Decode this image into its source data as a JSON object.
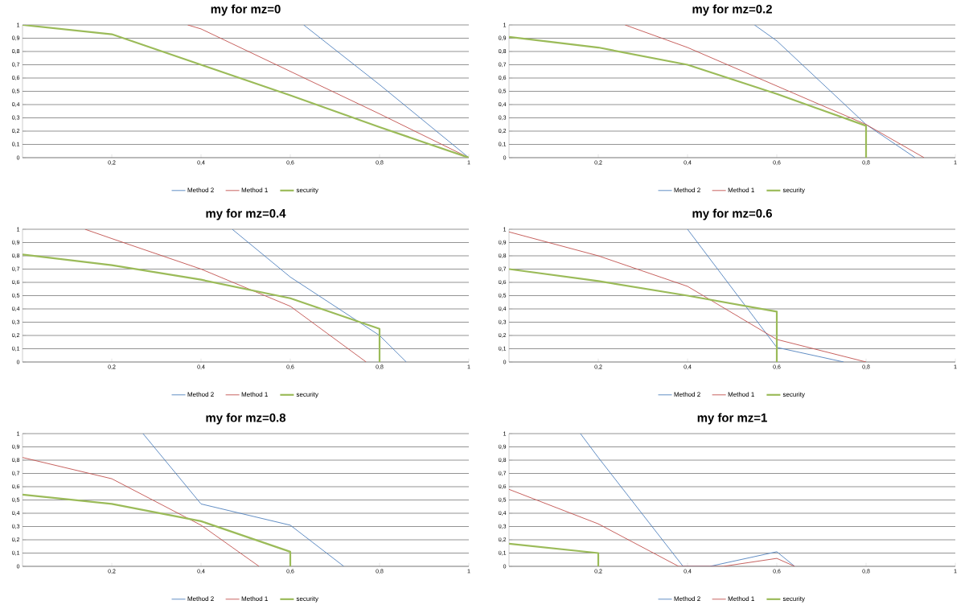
{
  "chart_data": [
    {
      "type": "line",
      "title": "my for mz=0",
      "xlim": [
        0,
        1
      ],
      "ylim": [
        0,
        1
      ],
      "xticks": [
        {
          "value": 0.2,
          "label": "0,2"
        },
        {
          "value": 0.4,
          "label": "0,4"
        },
        {
          "value": 0.6,
          "label": "0,6"
        },
        {
          "value": 0.8,
          "label": "0,8"
        },
        1
      ],
      "yticks": [
        0,
        {
          "value": 0.1,
          "label": "0,1"
        },
        {
          "value": 0.2,
          "label": "0,2"
        },
        {
          "value": 0.3,
          "label": "0,3"
        },
        {
          "value": 0.4,
          "label": "0,4"
        },
        {
          "value": 0.5,
          "label": "0,5"
        },
        {
          "value": 0.6,
          "label": "0,6"
        },
        {
          "value": 0.7,
          "label": "0,7"
        },
        {
          "value": 0.8,
          "label": "0,8"
        },
        {
          "value": 0.9,
          "label": "0,9"
        },
        1
      ],
      "grid": "y",
      "legend": "bottom",
      "marker": "none",
      "series": [
        {
          "name": "Method 2",
          "color": "#4f81bd",
          "x": [
            0.63,
            0.8,
            1
          ],
          "values": [
            1,
            0.55,
            0
          ]
        },
        {
          "name": "Method 1",
          "color": "#c0504d",
          "x": [
            0.37,
            0.4,
            0.6,
            0.8,
            1
          ],
          "values": [
            1,
            0.97,
            0.65,
            0.33,
            0
          ]
        },
        {
          "name": "security",
          "color": "#9bbb59",
          "x": [
            0,
            0.2,
            0.4,
            0.6,
            0.8,
            1
          ],
          "values": [
            1,
            0.93,
            0.7,
            0.47,
            0.23,
            0
          ]
        }
      ]
    },
    {
      "type": "line",
      "title": "my for mz=0.2",
      "xlim": [
        0,
        1
      ],
      "ylim": [
        0,
        1
      ],
      "xticks": [
        {
          "value": 0.2,
          "label": "0,2"
        },
        {
          "value": 0.4,
          "label": "0,4"
        },
        {
          "value": 0.6,
          "label": "0,6"
        },
        {
          "value": 0.8,
          "label": "0,8"
        },
        1
      ],
      "yticks": [
        0,
        {
          "value": 0.1,
          "label": "0,1"
        },
        {
          "value": 0.2,
          "label": "0,2"
        },
        {
          "value": 0.3,
          "label": "0,3"
        },
        {
          "value": 0.4,
          "label": "0,4"
        },
        {
          "value": 0.5,
          "label": "0,5"
        },
        {
          "value": 0.6,
          "label": "0,6"
        },
        {
          "value": 0.7,
          "label": "0,7"
        },
        {
          "value": 0.8,
          "label": "0,8"
        },
        {
          "value": 0.9,
          "label": "0,9"
        },
        1
      ],
      "grid": "y",
      "legend": "bottom",
      "marker": "none",
      "series": [
        {
          "name": "Method 2",
          "color": "#4f81bd",
          "x": [
            0.55,
            0.6,
            0.8,
            0.91
          ],
          "values": [
            1,
            0.88,
            0.25,
            0
          ]
        },
        {
          "name": "Method 1",
          "color": "#c0504d",
          "x": [
            0.26,
            0.4,
            0.6,
            0.8,
            0.93
          ],
          "values": [
            1,
            0.83,
            0.54,
            0.25,
            0
          ]
        },
        {
          "name": "security",
          "color": "#9bbb59",
          "x": [
            0,
            0.2,
            0.4,
            0.6,
            0.8,
            0.8
          ],
          "values": [
            0.91,
            0.83,
            0.7,
            0.48,
            0.24,
            0
          ]
        }
      ]
    },
    {
      "type": "line",
      "title": "my for mz=0.4",
      "xlim": [
        0,
        1
      ],
      "ylim": [
        0,
        1
      ],
      "xticks": [
        {
          "value": 0.2,
          "label": "0,2"
        },
        {
          "value": 0.4,
          "label": "0,4"
        },
        {
          "value": 0.6,
          "label": "0,6"
        },
        {
          "value": 0.8,
          "label": "0,8"
        },
        1
      ],
      "yticks": [
        0,
        {
          "value": 0.1,
          "label": "0,1"
        },
        {
          "value": 0.2,
          "label": "0,2"
        },
        {
          "value": 0.3,
          "label": "0,3"
        },
        {
          "value": 0.4,
          "label": "0,4"
        },
        {
          "value": 0.5,
          "label": "0,5"
        },
        {
          "value": 0.6,
          "label": "0,6"
        },
        {
          "value": 0.7,
          "label": "0,7"
        },
        {
          "value": 0.8,
          "label": "0,8"
        },
        {
          "value": 0.9,
          "label": "0,9"
        },
        1
      ],
      "grid": "y",
      "legend": "bottom",
      "marker": "none",
      "series": [
        {
          "name": "Method 2",
          "color": "#4f81bd",
          "x": [
            0.47,
            0.6,
            0.8,
            0.86
          ],
          "values": [
            1,
            0.64,
            0.2,
            0
          ]
        },
        {
          "name": "Method 1",
          "color": "#c0504d",
          "x": [
            0.14,
            0.2,
            0.4,
            0.6,
            0.77
          ],
          "values": [
            1,
            0.93,
            0.7,
            0.42,
            0
          ]
        },
        {
          "name": "security",
          "color": "#9bbb59",
          "x": [
            0,
            0.2,
            0.4,
            0.6,
            0.8,
            0.8
          ],
          "values": [
            0.81,
            0.73,
            0.62,
            0.48,
            0.25,
            0
          ]
        }
      ]
    },
    {
      "type": "line",
      "title": "my for mz=0.6",
      "xlim": [
        0,
        1
      ],
      "ylim": [
        0,
        1
      ],
      "xticks": [
        {
          "value": 0.2,
          "label": "0,2"
        },
        {
          "value": 0.4,
          "label": "0,4"
        },
        {
          "value": 0.6,
          "label": "0,6"
        },
        {
          "value": 0.8,
          "label": "0,8"
        },
        1
      ],
      "yticks": [
        0,
        {
          "value": 0.1,
          "label": "0,1"
        },
        {
          "value": 0.2,
          "label": "0,2"
        },
        {
          "value": 0.3,
          "label": "0,3"
        },
        {
          "value": 0.4,
          "label": "0,4"
        },
        {
          "value": 0.5,
          "label": "0,5"
        },
        {
          "value": 0.6,
          "label": "0,6"
        },
        {
          "value": 0.7,
          "label": "0,7"
        },
        {
          "value": 0.8,
          "label": "0,8"
        },
        {
          "value": 0.9,
          "label": "0,9"
        },
        1
      ],
      "grid": "y",
      "legend": "bottom",
      "marker": "none",
      "series": [
        {
          "name": "Method 2",
          "color": "#4f81bd",
          "x": [
            0.4,
            0.6,
            0.75
          ],
          "values": [
            1,
            0.11,
            0
          ]
        },
        {
          "name": "Method 1",
          "color": "#c0504d",
          "x": [
            0,
            0.2,
            0.4,
            0.6,
            0.8
          ],
          "values": [
            0.98,
            0.8,
            0.57,
            0.17,
            0
          ]
        },
        {
          "name": "security",
          "color": "#9bbb59",
          "x": [
            0,
            0.2,
            0.4,
            0.6,
            0.6
          ],
          "values": [
            0.7,
            0.61,
            0.5,
            0.38,
            0
          ]
        }
      ]
    },
    {
      "type": "line",
      "title": "my for mz=0.8",
      "xlim": [
        0,
        1
      ],
      "ylim": [
        0,
        1
      ],
      "xticks": [
        {
          "value": 0.2,
          "label": "0,2"
        },
        {
          "value": 0.4,
          "label": "0,4"
        },
        {
          "value": 0.6,
          "label": "0,6"
        },
        {
          "value": 0.8,
          "label": "0,8"
        },
        1
      ],
      "yticks": [
        0,
        {
          "value": 0.1,
          "label": "0,1"
        },
        {
          "value": 0.2,
          "label": "0,2"
        },
        {
          "value": 0.3,
          "label": "0,3"
        },
        {
          "value": 0.4,
          "label": "0,4"
        },
        {
          "value": 0.5,
          "label": "0,5"
        },
        {
          "value": 0.6,
          "label": "0,6"
        },
        {
          "value": 0.7,
          "label": "0,7"
        },
        {
          "value": 0.8,
          "label": "0,8"
        },
        {
          "value": 0.9,
          "label": "0,9"
        },
        1
      ],
      "grid": "y",
      "legend": "bottom",
      "marker": "none",
      "series": [
        {
          "name": "Method 2",
          "color": "#4f81bd",
          "x": [
            0.27,
            0.4,
            0.6,
            0.72
          ],
          "values": [
            1,
            0.47,
            0.31,
            0
          ]
        },
        {
          "name": "Method 1",
          "color": "#c0504d",
          "x": [
            0,
            0.2,
            0.4,
            0.53
          ],
          "values": [
            0.82,
            0.66,
            0.31,
            0
          ]
        },
        {
          "name": "security",
          "color": "#9bbb59",
          "x": [
            0,
            0.2,
            0.4,
            0.6,
            0.6
          ],
          "values": [
            0.54,
            0.47,
            0.34,
            0.11,
            0
          ]
        }
      ]
    },
    {
      "type": "line",
      "title": "my for mz=1",
      "xlim": [
        0,
        1
      ],
      "ylim": [
        0,
        1
      ],
      "xticks": [
        {
          "value": 0.2,
          "label": "0,2"
        },
        {
          "value": 0.4,
          "label": "0,4"
        },
        {
          "value": 0.6,
          "label": "0,6"
        },
        {
          "value": 0.8,
          "label": "0,8"
        },
        1
      ],
      "yticks": [
        0,
        {
          "value": 0.1,
          "label": "0,1"
        },
        {
          "value": 0.2,
          "label": "0,2"
        },
        {
          "value": 0.3,
          "label": "0,3"
        },
        {
          "value": 0.4,
          "label": "0,4"
        },
        {
          "value": 0.5,
          "label": "0,5"
        },
        {
          "value": 0.6,
          "label": "0,6"
        },
        {
          "value": 0.7,
          "label": "0,7"
        },
        {
          "value": 0.8,
          "label": "0,8"
        },
        {
          "value": 0.9,
          "label": "0,9"
        },
        1
      ],
      "grid": "y",
      "legend": "bottom",
      "marker": "none",
      "series": [
        {
          "name": "Method 2",
          "color": "#4f81bd",
          "x": [
            0.16,
            0.2,
            0.39,
            0.45,
            0.6,
            0.64
          ],
          "values": [
            1,
            0.82,
            0,
            0,
            0.11,
            0
          ]
        },
        {
          "name": "Method 1",
          "color": "#c0504d",
          "x": [
            0,
            0.2,
            0.38,
            0.48,
            0.6,
            0.64
          ],
          "values": [
            0.58,
            0.32,
            0,
            0,
            0.06,
            0
          ]
        },
        {
          "name": "security",
          "color": "#9bbb59",
          "x": [
            0,
            0.2,
            0.2
          ],
          "values": [
            0.17,
            0.1,
            0
          ]
        }
      ]
    }
  ]
}
